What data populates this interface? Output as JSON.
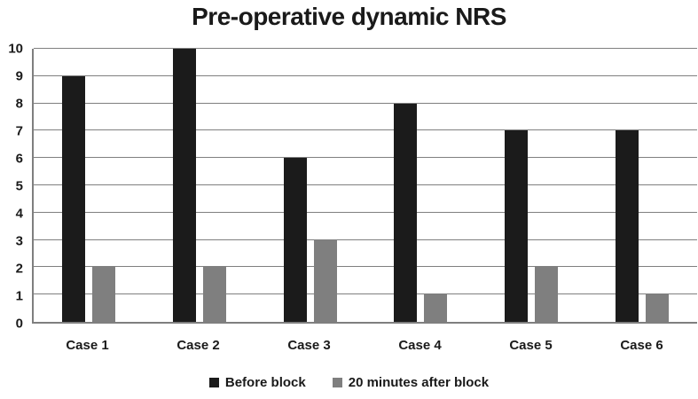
{
  "chart_data": {
    "type": "bar",
    "title": "Pre-operative dynamic NRS",
    "categories": [
      "Case 1",
      "Case 2",
      "Case 3",
      "Case 4",
      "Case 5",
      "Case 6"
    ],
    "series": [
      {
        "name": "Before block",
        "color": "#1b1b1b",
        "values": [
          9,
          10,
          6,
          8,
          7,
          7
        ]
      },
      {
        "name": "20 minutes after block",
        "color": "#7f7f7f",
        "values": [
          2,
          2,
          3,
          1,
          2,
          1
        ]
      }
    ],
    "xlabel": "",
    "ylabel": "",
    "ylim": [
      0,
      10
    ],
    "yticks": [
      0,
      1,
      2,
      3,
      4,
      5,
      6,
      7,
      8,
      9,
      10
    ],
    "grid": true,
    "gridline_color": "#7f7f7f",
    "axis_color": "#7f7f7f",
    "text_color": "#1a1a1a",
    "background_color": "#ffffff",
    "legend_position": "bottom"
  },
  "legend": {
    "items": [
      {
        "label": "Before block",
        "color": "#1b1b1b"
      },
      {
        "label": "20 minutes after block",
        "color": "#7f7f7f"
      }
    ]
  }
}
